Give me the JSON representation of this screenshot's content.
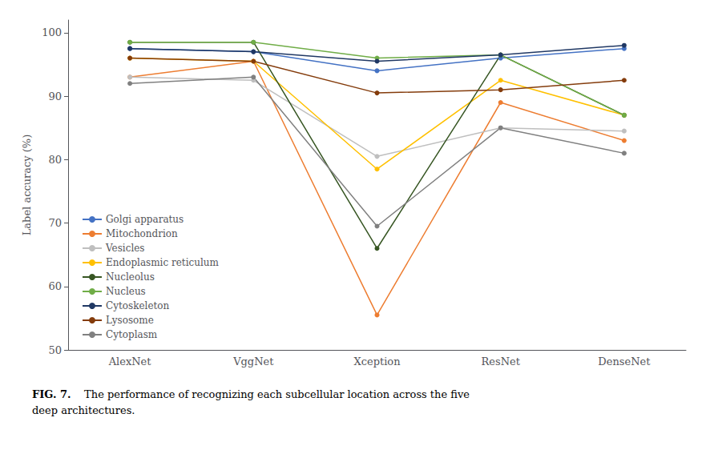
{
  "chart_data": {
    "type": "line",
    "categories": [
      "AlexNet",
      "VggNet",
      "Xception",
      "ResNet",
      "DenseNet"
    ],
    "series": [
      {
        "name": "Golgi apparatus",
        "color": "#4472C4",
        "marker": "circle",
        "values": [
          97.5,
          97.0,
          94.0,
          96.0,
          97.5
        ]
      },
      {
        "name": "Mitochondrion",
        "color": "#ED7D31",
        "marker": "circle",
        "values": [
          93.0,
          95.5,
          55.5,
          89.0,
          83.0
        ]
      },
      {
        "name": "Vesicles",
        "color": "#BFBFBF",
        "marker": "circle",
        "values": [
          93.0,
          92.5,
          80.5,
          85.0,
          84.5
        ]
      },
      {
        "name": "Endoplasmic reticulum",
        "color": "#FFC000",
        "marker": "circle",
        "values": [
          96.0,
          95.5,
          78.5,
          92.5,
          87.0
        ]
      },
      {
        "name": "Nucleolus",
        "color": "#375623",
        "marker": "circle",
        "values": [
          98.5,
          98.5,
          66.0,
          96.5,
          87.0
        ]
      },
      {
        "name": "Nucleus",
        "color": "#70AD47",
        "marker": "circle",
        "values": [
          98.5,
          98.5,
          96.0,
          96.5,
          87.0
        ]
      },
      {
        "name": "Cytoskeleton",
        "color": "#203864",
        "marker": "circle",
        "values": [
          97.5,
          97.0,
          95.5,
          96.5,
          98.0
        ]
      },
      {
        "name": "Lysosome",
        "color": "#843C0C",
        "marker": "circle",
        "values": [
          96.0,
          95.5,
          90.5,
          91.0,
          92.5
        ]
      },
      {
        "name": "Cytoplasm",
        "color": "#808080",
        "marker": "circle",
        "values": [
          92.0,
          93.0,
          69.5,
          85.0,
          81.0
        ]
      }
    ],
    "ylabel": "Label accuracy (%)",
    "ylim": [
      50,
      102
    ],
    "yticks": [
      50,
      60,
      70,
      80,
      90,
      100
    ],
    "caption_label": "FIG. 7.",
    "caption": "The performance of recognizing each subcellular location across the five\ndeep architectures.",
    "legend": "lower left",
    "grid": false
  }
}
